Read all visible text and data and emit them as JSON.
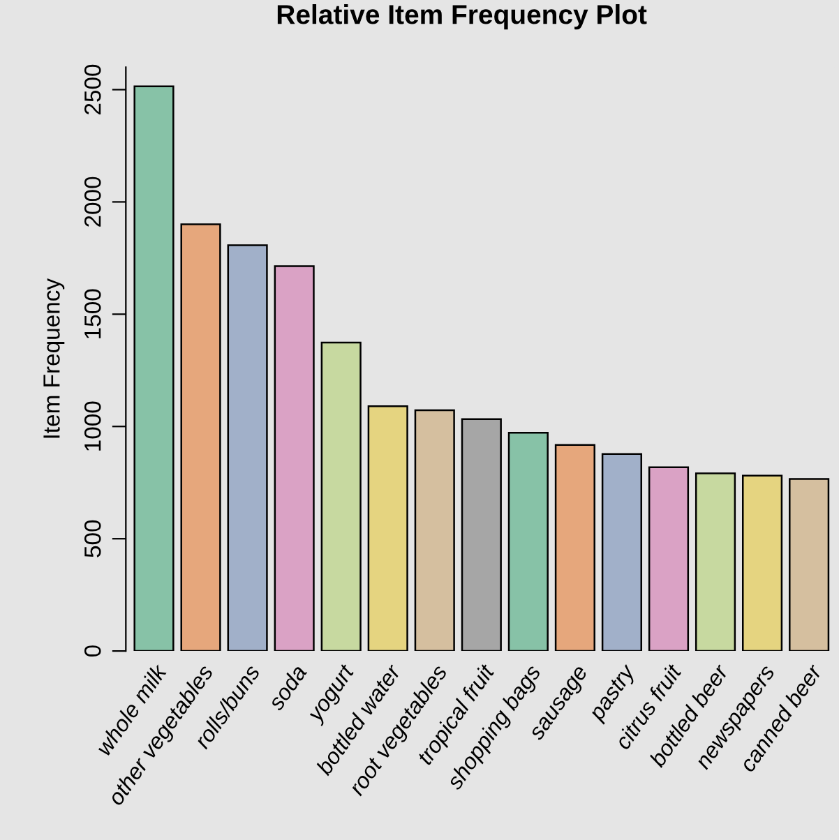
{
  "chart_data": {
    "type": "bar",
    "title": "Relative Item Frequency Plot",
    "ylabel": "Item Frequency",
    "categories": [
      "whole milk",
      "other vegetables",
      "rolls/buns",
      "soda",
      "yogurt",
      "bottled water",
      "root vegetables",
      "tropical fruit",
      "shopping bags",
      "sausage",
      "pastry",
      "citrus fruit",
      "bottled beer",
      "newspapers",
      "canned beer"
    ],
    "values": [
      2515,
      1900,
      1807,
      1714,
      1374,
      1090,
      1072,
      1033,
      972,
      918,
      877,
      818,
      791,
      781,
      766
    ],
    "colors": [
      "#87c2a7",
      "#e6a77c",
      "#a1b0c9",
      "#daa2c5",
      "#c7d9a0",
      "#e5d480",
      "#d5bf9f",
      "#a6a6a6",
      "#87c2a7",
      "#e6a77c",
      "#a1b0c9",
      "#daa2c5",
      "#c7d9a0",
      "#e5d480",
      "#d5bf9f"
    ],
    "ylim": [
      0,
      2600
    ],
    "yticks": [
      0,
      500,
      1000,
      1500,
      2000,
      2500
    ],
    "grid": false,
    "legend": false
  }
}
